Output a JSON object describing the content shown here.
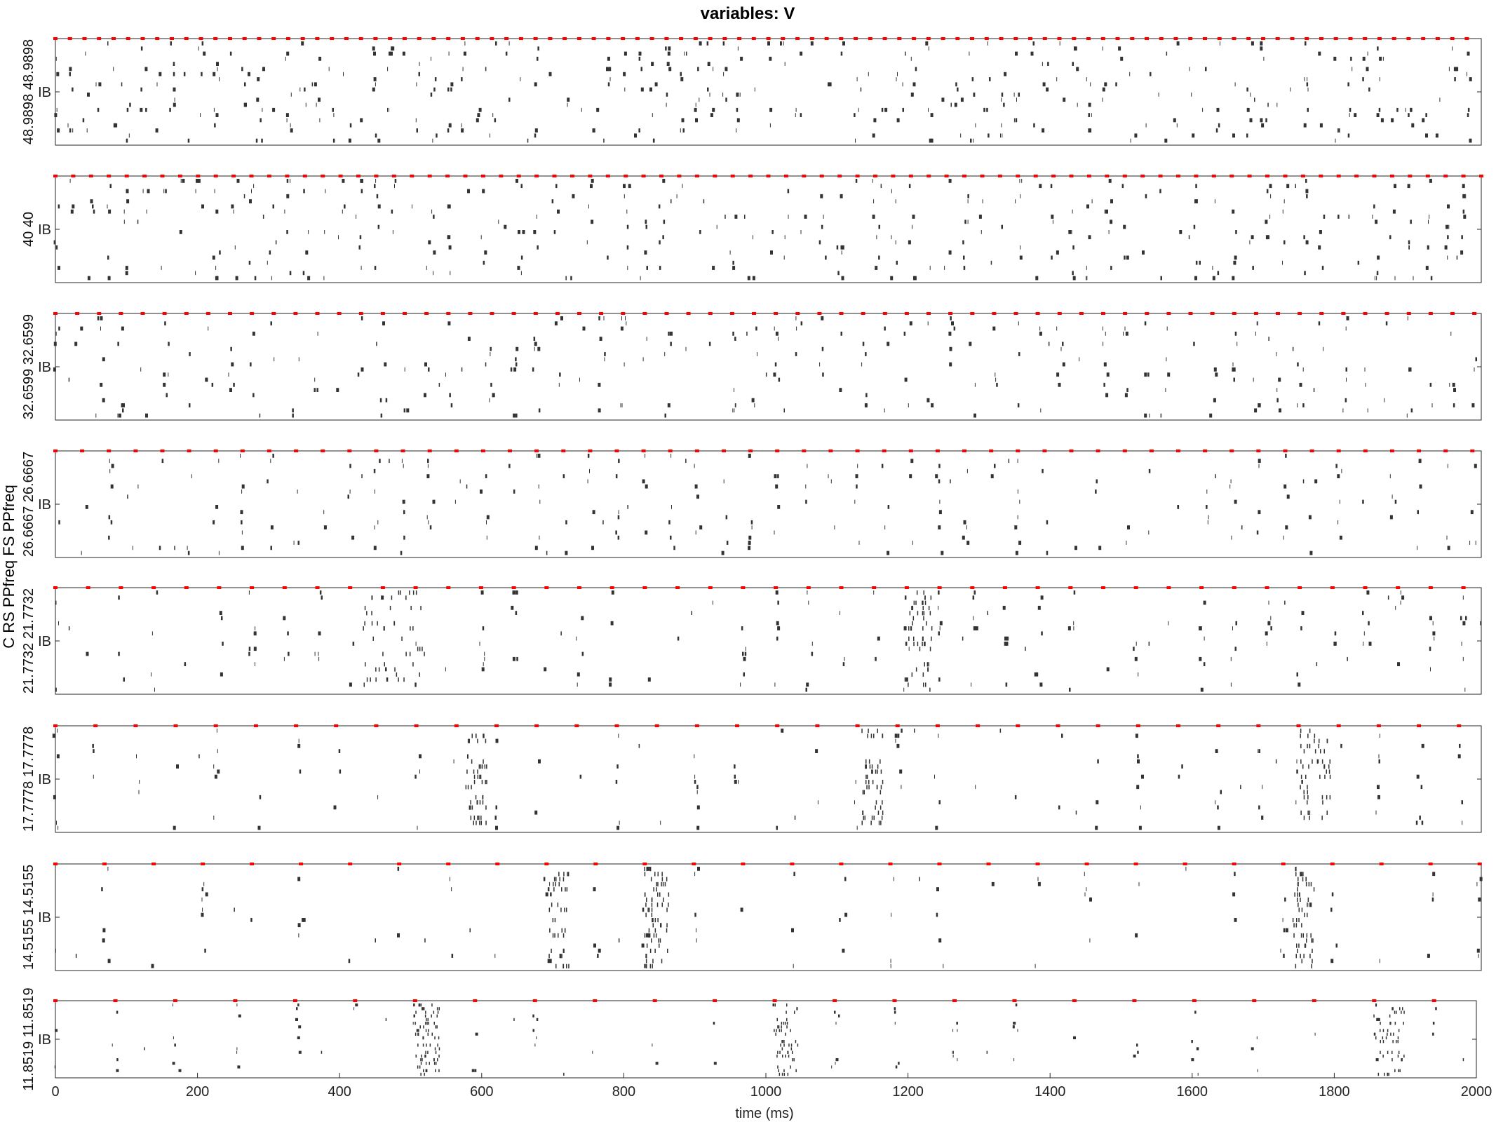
{
  "colors": {
    "spike": "#333333",
    "input_marker": "#ff0000",
    "axis": "#262626"
  },
  "chart_data": {
    "type": "raster",
    "title": "variables: V",
    "xlabel": "time (ms)",
    "xlim": [
      0,
      2000
    ],
    "xticks": [
      "0",
      "200",
      "400",
      "600",
      "800",
      "1000",
      "1200",
      "1400",
      "1600",
      "1800",
      "2000"
    ],
    "ytick_label": "IB",
    "ylabel_header": "C RS PPfreq FS PPfreq",
    "y_labels": [
      "48.9898 48.9898",
      "40 40",
      "32.6599 32.6599",
      "26.6667 26.6667",
      "21.7732 21.7732",
      "17.7778 17.7778",
      "14.5155 14.5155",
      "11.8519 11.8519"
    ],
    "panels": [
      {
        "rs_ppfreq": "48.9898",
        "fs_ppfreq": "48.9898",
        "input_period_ms": 20.41
      },
      {
        "rs_ppfreq": "40",
        "fs_ppfreq": "40",
        "input_period_ms": 25.0
      },
      {
        "rs_ppfreq": "32.6599",
        "fs_ppfreq": "32.6599",
        "input_period_ms": 30.62
      },
      {
        "rs_ppfreq": "26.6667",
        "fs_ppfreq": "26.6667",
        "input_period_ms": 37.5
      },
      {
        "rs_ppfreq": "21.7732",
        "fs_ppfreq": "21.7732",
        "input_period_ms": 45.93
      },
      {
        "rs_ppfreq": "17.7778",
        "fs_ppfreq": "17.7778",
        "input_period_ms": 56.25
      },
      {
        "rs_ppfreq": "14.5155",
        "fs_ppfreq": "14.5155",
        "input_period_ms": 68.89
      },
      {
        "rs_ppfreq": "11.8519",
        "fs_ppfreq": "11.8519",
        "input_period_ms": 84.37
      }
    ],
    "bursts": [
      [],
      [],
      [],
      [],
      [
        [
          430,
          520
        ],
        [
          1195,
          1230
        ]
      ],
      [
        [
          575,
          605
        ],
        [
          1130,
          1160
        ],
        [
          1745,
          1790
        ]
      ],
      [
        [
          690,
          720
        ],
        [
          825,
          860
        ],
        [
          1735,
          1765
        ]
      ],
      [
        [
          505,
          540
        ],
        [
          1010,
          1045
        ],
        [
          1855,
          1900
        ]
      ]
    ]
  }
}
